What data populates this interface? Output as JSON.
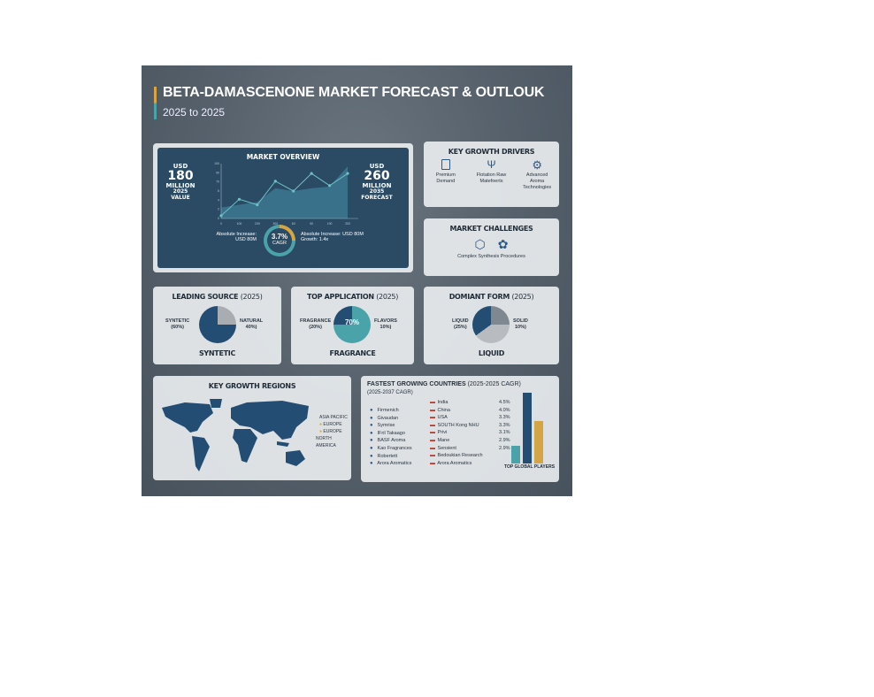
{
  "header": {
    "title": "BETA-DAMASCENONE MARKET FORECAST & OUTLOUK",
    "subtitle": "2025 to 2025"
  },
  "overview": {
    "title": "MARKET OVERVIEW",
    "left": {
      "currency": "USD",
      "value": "180",
      "unit": "MILLION",
      "caption": "2025 VALUE"
    },
    "right": {
      "currency": "USD",
      "value": "260",
      "unit": "MILLION",
      "caption": "2035 FORECAST"
    },
    "cagr": {
      "value": "3.7%",
      "label": "CAGR",
      "fraction": 0.25
    },
    "abs_left": "Absolute Increase:\nUSD 80M",
    "abs_right": "Absolute Increase: USD 80M\nGrowth: 1.4x"
  },
  "chart_data": {
    "type": "line",
    "x_ticks": [
      "0",
      "100",
      "200",
      "300",
      "60",
      "50",
      "190",
      "200"
    ],
    "y_ticks": [
      "0",
      "2",
      "4",
      "6",
      "70",
      "90",
      "100"
    ],
    "values": [
      0.5,
      3.5,
      2.5,
      6.8,
      5,
      8.2,
      6,
      8.2
    ],
    "area": [
      2,
      2.5,
      3,
      5.5,
      5,
      5.5,
      5.8,
      9.5
    ]
  },
  "drivers": {
    "title": "KEY GROWTH DRIVERS",
    "items": [
      {
        "icon": "perfume-bottle-icon",
        "label": "Premium Demand"
      },
      {
        "icon": "fork-spoon-icon",
        "label": "Flotation Raw Matefoerts"
      },
      {
        "icon": "gear-icon",
        "label": "Advanced Aroma Technologies"
      }
    ]
  },
  "challenges": {
    "title": "MARKET CHALLENGES",
    "label": "Complex Synthesis Procedures"
  },
  "pies": [
    {
      "title": "LEADING SOURCE",
      "year": "(2025)",
      "left": "SYNTETIC\n(60%)",
      "right": "NATURAL\n40%)",
      "center": "",
      "caption": "SYNTETIC"
    },
    {
      "title": "TOP APPLICATION",
      "year": "(2025)",
      "left": "FRAGRANCE\n(20%)",
      "right": "FLAVORS\n10%)",
      "center": "70%",
      "caption": "FRAGRANCE"
    },
    {
      "title": "DOMIANT FORM",
      "year": "(2025)",
      "left": "LIQUID\n(25%)",
      "right": "SOLID\n10%)",
      "center": "",
      "caption": "LIQUID"
    }
  ],
  "regions": {
    "title": "KEY GROWTH REGIONS",
    "legend": [
      "ASIA PACIFIC",
      "EUROPE",
      "EUROPE",
      "NORTH AMERICA"
    ]
  },
  "countries": {
    "title": "FASTEST GROWING COUNTRIES",
    "title_paren": "(2025-2025 CAGR)",
    "subtitle": "(2025-2037 CAGR)",
    "players": [
      "Firmenich",
      "Givaudan",
      "Symrise",
      "IFril Takaago",
      "BASF Aroma",
      "Kao Fragrances",
      "Robertett",
      "Arora Aromatics"
    ],
    "countries": [
      {
        "name": "India",
        "value": "4.5%"
      },
      {
        "name": "China",
        "value": "4.0%"
      },
      {
        "name": "USA",
        "value": "3.3%"
      },
      {
        "name": "SOUTH Kong NHU",
        "value": "3.3%"
      },
      {
        "name": "Privi",
        "value": "3.1%"
      },
      {
        "name": "Mane",
        "value": "2.9%"
      },
      {
        "name": "Sensient",
        "value": "2.9%"
      },
      {
        "name": "Bedoukian Research",
        "value": ""
      },
      {
        "name": "Arora Aromatics",
        "value": ""
      }
    ],
    "bars_caption": "TOP GLOBAL PLAYERS",
    "bars": [
      {
        "value": 0.25,
        "color": "#4aa3a8"
      },
      {
        "value": 1,
        "color": "#234d72"
      },
      {
        "value": 0.6,
        "color": "#d4a544"
      }
    ]
  },
  "colors": {
    "navy": "#234d72",
    "teal": "#4aa3a8",
    "gold": "#d4a544",
    "grey": "#a9adb2"
  }
}
